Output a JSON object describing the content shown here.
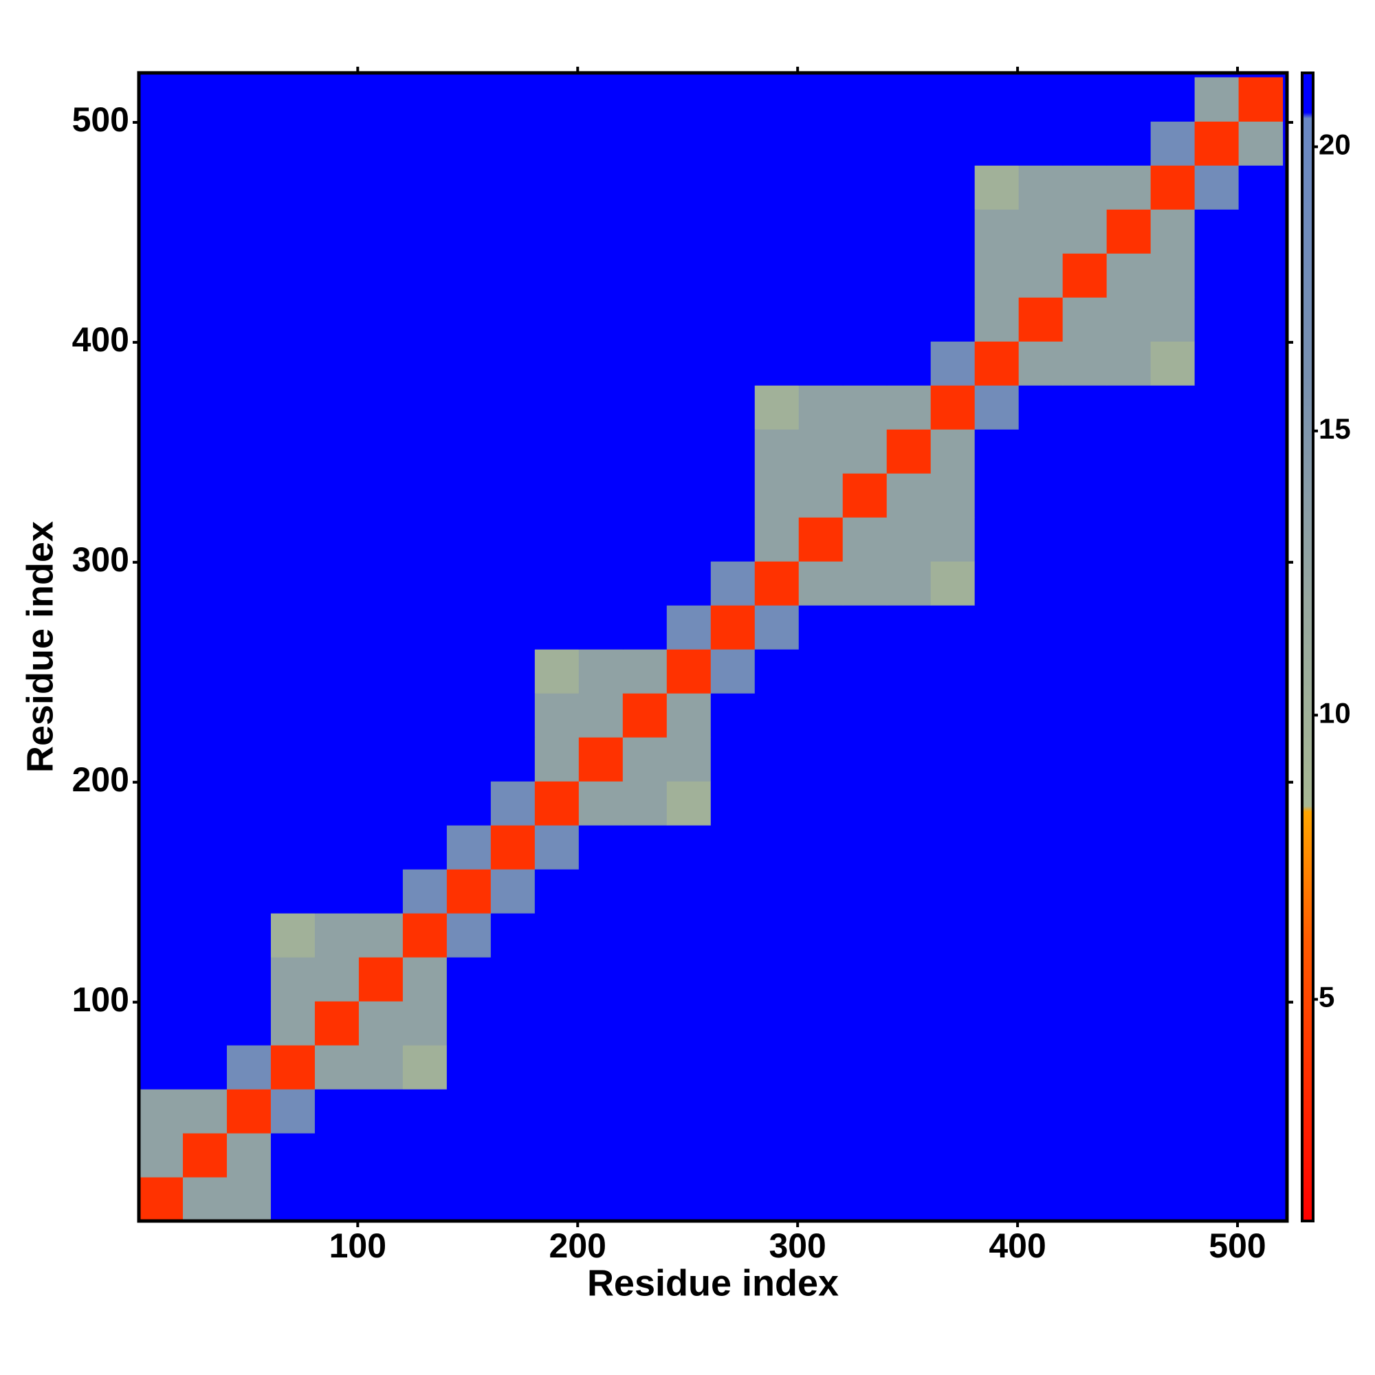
{
  "chart_data": {
    "type": "heatmap",
    "xlabel": "Residue index",
    "ylabel": "Residue index",
    "bins": [
      0.5,
      20.5,
      40.5,
      60.5,
      80.5,
      100.5,
      120.5,
      140.5,
      160.5,
      180.5,
      200.5,
      220.5,
      240.5,
      260.5,
      280.5,
      300.5,
      320.5,
      340.5,
      360.5,
      380.5,
      400.5,
      420.5,
      440.5,
      460.5,
      480.5,
      500.5,
      520.5
    ],
    "values": [
      [
        3.8,
        13,
        13,
        21,
        21,
        21,
        21,
        21,
        21,
        21,
        21,
        21,
        21,
        21,
        21,
        21,
        21,
        21,
        21,
        21,
        21,
        21,
        21,
        21,
        21,
        21
      ],
      [
        13,
        3.8,
        13,
        21,
        21,
        21,
        21,
        21,
        21,
        21,
        21,
        21,
        21,
        21,
        21,
        21,
        21,
        21,
        21,
        21,
        21,
        21,
        21,
        21,
        21,
        21
      ],
      [
        13,
        13,
        3.8,
        18,
        21,
        21,
        21,
        21,
        21,
        21,
        21,
        21,
        21,
        21,
        21,
        21,
        21,
        21,
        21,
        21,
        21,
        21,
        21,
        21,
        21,
        21
      ],
      [
        21,
        21,
        18,
        3.8,
        13,
        13,
        10,
        21,
        21,
        21,
        21,
        21,
        21,
        21,
        21,
        21,
        21,
        21,
        21,
        21,
        21,
        21,
        21,
        21,
        21,
        21
      ],
      [
        21,
        21,
        21,
        13,
        3.8,
        13,
        13,
        21,
        21,
        21,
        21,
        21,
        21,
        21,
        21,
        21,
        21,
        21,
        21,
        21,
        21,
        21,
        21,
        21,
        21,
        21
      ],
      [
        21,
        21,
        21,
        13,
        13,
        3.8,
        13,
        21,
        21,
        21,
        21,
        21,
        21,
        21,
        21,
        21,
        21,
        21,
        21,
        21,
        21,
        21,
        21,
        21,
        21,
        21
      ],
      [
        21,
        21,
        21,
        10,
        13,
        13,
        3.8,
        18,
        21,
        21,
        21,
        21,
        21,
        21,
        21,
        21,
        21,
        21,
        21,
        21,
        21,
        21,
        21,
        21,
        21,
        21
      ],
      [
        21,
        21,
        21,
        21,
        21,
        21,
        18,
        3.8,
        18,
        21,
        21,
        21,
        21,
        21,
        21,
        21,
        21,
        21,
        21,
        21,
        21,
        21,
        21,
        21,
        21,
        21
      ],
      [
        21,
        21,
        21,
        21,
        21,
        21,
        21,
        18,
        3.8,
        18,
        21,
        21,
        21,
        21,
        21,
        21,
        21,
        21,
        21,
        21,
        21,
        21,
        21,
        21,
        21,
        21
      ],
      [
        21,
        21,
        21,
        21,
        21,
        21,
        21,
        21,
        18,
        3.8,
        13,
        13,
        10,
        21,
        21,
        21,
        21,
        21,
        21,
        21,
        21,
        21,
        21,
        21,
        21,
        21
      ],
      [
        21,
        21,
        21,
        21,
        21,
        21,
        21,
        21,
        21,
        13,
        3.8,
        13,
        13,
        21,
        21,
        21,
        21,
        21,
        21,
        21,
        21,
        21,
        21,
        21,
        21,
        21
      ],
      [
        21,
        21,
        21,
        21,
        21,
        21,
        21,
        21,
        21,
        13,
        13,
        3.8,
        13,
        21,
        21,
        21,
        21,
        21,
        21,
        21,
        21,
        21,
        21,
        21,
        21,
        21
      ],
      [
        21,
        21,
        21,
        21,
        21,
        21,
        21,
        21,
        21,
        10,
        13,
        13,
        3.8,
        18,
        21,
        21,
        21,
        21,
        21,
        21,
        21,
        21,
        21,
        21,
        21,
        21
      ],
      [
        21,
        21,
        21,
        21,
        21,
        21,
        21,
        21,
        21,
        21,
        21,
        21,
        18,
        3.8,
        18,
        21,
        21,
        21,
        21,
        21,
        21,
        21,
        21,
        21,
        21,
        21
      ],
      [
        21,
        21,
        21,
        21,
        21,
        21,
        21,
        21,
        21,
        21,
        21,
        21,
        21,
        18,
        3.8,
        13,
        13,
        13,
        10,
        21,
        21,
        21,
        21,
        21,
        21,
        21
      ],
      [
        21,
        21,
        21,
        21,
        21,
        21,
        21,
        21,
        21,
        21,
        21,
        21,
        21,
        21,
        13,
        3.8,
        13,
        13,
        13,
        21,
        21,
        21,
        21,
        21,
        21,
        21
      ],
      [
        21,
        21,
        21,
        21,
        21,
        21,
        21,
        21,
        21,
        21,
        21,
        21,
        21,
        21,
        13,
        13,
        3.8,
        13,
        13,
        21,
        21,
        21,
        21,
        21,
        21,
        21
      ],
      [
        21,
        21,
        21,
        21,
        21,
        21,
        21,
        21,
        21,
        21,
        21,
        21,
        21,
        21,
        13,
        13,
        13,
        3.8,
        13,
        21,
        21,
        21,
        21,
        21,
        21,
        21
      ],
      [
        21,
        21,
        21,
        21,
        21,
        21,
        21,
        21,
        21,
        21,
        21,
        21,
        21,
        21,
        10,
        13,
        13,
        13,
        3.8,
        18,
        21,
        21,
        21,
        21,
        21,
        21
      ],
      [
        21,
        21,
        21,
        21,
        21,
        21,
        21,
        21,
        21,
        21,
        21,
        21,
        21,
        21,
        21,
        21,
        21,
        21,
        18,
        3.8,
        13,
        13,
        13,
        10,
        21,
        21
      ],
      [
        21,
        21,
        21,
        21,
        21,
        21,
        21,
        21,
        21,
        21,
        21,
        21,
        21,
        21,
        21,
        21,
        21,
        21,
        21,
        13,
        3.8,
        13,
        13,
        13,
        21,
        21
      ],
      [
        21,
        21,
        21,
        21,
        21,
        21,
        21,
        21,
        21,
        21,
        21,
        21,
        21,
        21,
        21,
        21,
        21,
        21,
        21,
        13,
        13,
        3.8,
        13,
        13,
        21,
        21
      ],
      [
        21,
        21,
        21,
        21,
        21,
        21,
        21,
        21,
        21,
        21,
        21,
        21,
        21,
        21,
        21,
        21,
        21,
        21,
        21,
        13,
        13,
        13,
        3.8,
        13,
        21,
        21
      ],
      [
        21,
        21,
        21,
        21,
        21,
        21,
        21,
        21,
        21,
        21,
        21,
        21,
        21,
        21,
        21,
        21,
        21,
        21,
        21,
        10,
        13,
        13,
        13,
        3.8,
        18,
        21
      ],
      [
        21,
        21,
        21,
        21,
        21,
        21,
        21,
        21,
        21,
        21,
        21,
        21,
        21,
        21,
        21,
        21,
        21,
        21,
        21,
        21,
        21,
        21,
        21,
        18,
        3.8,
        13
      ],
      [
        21,
        21,
        21,
        21,
        21,
        21,
        21,
        21,
        21,
        21,
        21,
        21,
        21,
        21,
        21,
        21,
        21,
        21,
        21,
        21,
        21,
        21,
        21,
        21,
        13,
        3.8
      ]
    ],
    "xlim": [
      0.5,
      522.5
    ],
    "ylim": [
      0.5,
      522.5
    ],
    "xticks": [
      100,
      200,
      300,
      400,
      500
    ],
    "yticks": [
      100,
      200,
      300,
      400,
      500
    ],
    "colorbar": {
      "lim": [
        1.1,
        21.3
      ],
      "ticks": [
        5,
        10,
        15,
        20
      ]
    },
    "colorscale": [
      [
        1.1,
        "#ff0000"
      ],
      [
        6,
        "#ff5a00"
      ],
      [
        8.3,
        "#ffa500"
      ],
      [
        8.4,
        "#a8b894"
      ],
      [
        12,
        "#98a8a0"
      ],
      [
        16,
        "#7890b0"
      ],
      [
        20.5,
        "#6a88c4"
      ],
      [
        20.6,
        "#0000ff"
      ],
      [
        21.3,
        "#0000ff"
      ]
    ]
  }
}
